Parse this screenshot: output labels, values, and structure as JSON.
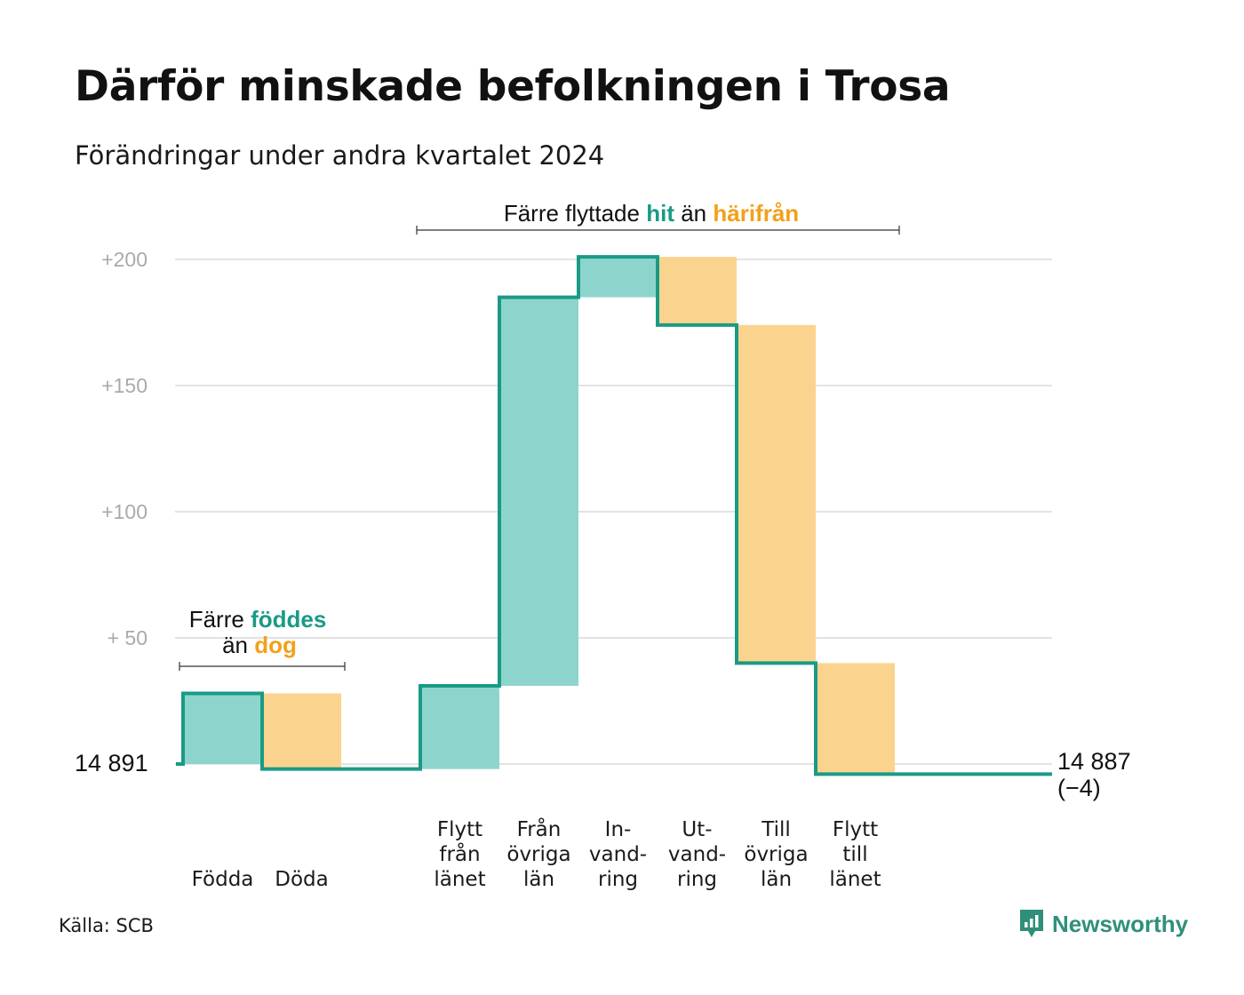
{
  "title": "Därför minskade befolkningen i Trosa",
  "subtitle": "Förändringar under andra kvartalet 2024",
  "source": "Källa: SCB",
  "logo_text": "Newsworthy",
  "colors": {
    "increase": "#8dd5cc",
    "decrease": "#fad48e",
    "line": "#1a9a86",
    "highlight_green": "#1a9a86",
    "highlight_orange": "#f2a01c",
    "grid": "#e3e3e3",
    "tick": "#aaaaaa"
  },
  "annotations": {
    "births": {
      "prefix": "Färre",
      "green": "föddes",
      "line2_prefix": "än",
      "orange": "dog"
    },
    "moves": {
      "prefix": "Färre flyttade",
      "green": "hit",
      "middle": "än",
      "orange": "härifrån"
    }
  },
  "chart_data": {
    "type": "waterfall",
    "title": "Därför minskade befolkningen i Trosa",
    "subtitle": "Förändringar under andra kvartalet 2024",
    "start_label": "14  891",
    "start_value": 14891,
    "end_label": "14 887",
    "end_change_label": "(−4)",
    "end_value": 14887,
    "ylim": [
      -4,
      210
    ],
    "yticks": [
      {
        "value": 200,
        "label": "+200"
      },
      {
        "value": 150,
        "label": "+150"
      },
      {
        "value": 100,
        "label": "+100"
      },
      {
        "value": 50,
        "label": "+  50"
      },
      {
        "value": 0,
        "label": ""
      }
    ],
    "grid": true,
    "steps": [
      {
        "slot": 0,
        "label": [
          "Födda"
        ],
        "value": 28,
        "kind": "increase"
      },
      {
        "slot": 1,
        "label": [
          "Döda"
        ],
        "value": -30,
        "kind": "decrease"
      },
      {
        "slot": 2,
        "label": [],
        "value": 0,
        "kind": "none"
      },
      {
        "slot": 3,
        "label": [
          "Flytt",
          "från",
          "länet"
        ],
        "value": 33,
        "kind": "increase"
      },
      {
        "slot": 4,
        "label": [
          "Från",
          "övriga",
          "län"
        ],
        "value": 154,
        "kind": "increase"
      },
      {
        "slot": 5,
        "label": [
          "In-",
          "vand-",
          "ring"
        ],
        "value": 16,
        "kind": "increase"
      },
      {
        "slot": 6,
        "label": [
          "Ut-",
          "vand-",
          "ring"
        ],
        "value": -27,
        "kind": "decrease"
      },
      {
        "slot": 7,
        "label": [
          "Till",
          "övriga",
          "län"
        ],
        "value": -134,
        "kind": "decrease"
      },
      {
        "slot": 8,
        "label": [
          "Flytt",
          "till",
          "länet"
        ],
        "value": -44,
        "kind": "decrease"
      }
    ]
  }
}
